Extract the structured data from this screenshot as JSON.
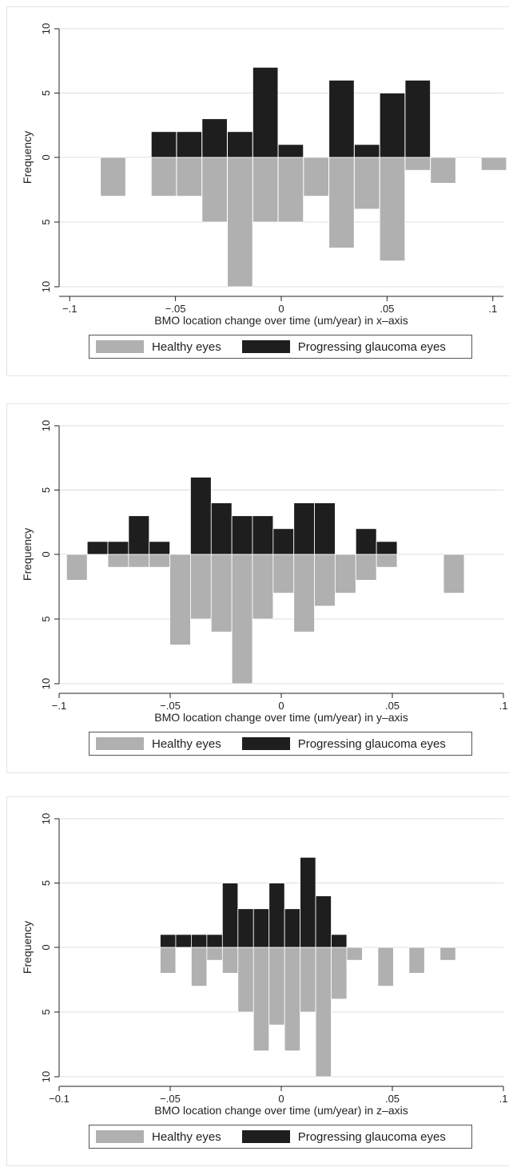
{
  "chart_data": [
    {
      "type": "bar",
      "xlabel": "BMO location change over time (um/year) in x–axis",
      "ylabel": "Frequency",
      "xlim": [
        -0.105,
        0.105
      ],
      "ylim_up": [
        0,
        10
      ],
      "ylim_down": [
        0,
        10
      ],
      "bin_width": 0.0119,
      "xticks": [
        -0.1,
        -0.05,
        0,
        0.05,
        0.1
      ],
      "xtick_labels": [
        "−.1",
        "−.05",
        "0",
        ".05",
        ".1"
      ],
      "yticks_up": [
        0,
        5,
        10
      ],
      "yticks_down": [
        5,
        10
      ],
      "ytick_labels_up": [
        "0",
        "5",
        "10"
      ],
      "ytick_labels_down": [
        "5",
        "10"
      ],
      "series": [
        {
          "name": "Healthy eyes",
          "direction": "down",
          "color": "#b0b0b0",
          "bins": [
            {
              "x": -0.0795,
              "value": 3
            },
            {
              "x": -0.0555,
              "value": 3
            },
            {
              "x": -0.0435,
              "value": 3
            },
            {
              "x": -0.0315,
              "value": 5
            },
            {
              "x": -0.0195,
              "value": 10
            },
            {
              "x": -0.0075,
              "value": 5
            },
            {
              "x": 0.0045,
              "value": 5
            },
            {
              "x": 0.0165,
              "value": 3
            },
            {
              "x": 0.0285,
              "value": 7
            },
            {
              "x": 0.0405,
              "value": 4
            },
            {
              "x": 0.0525,
              "value": 8
            },
            {
              "x": 0.0645,
              "value": 1
            },
            {
              "x": 0.0765,
              "value": 2
            },
            {
              "x": 0.1005,
              "value": 1
            }
          ]
        },
        {
          "name": "Progressing glaucoma eyes",
          "direction": "up",
          "color": "#1e1e1e",
          "bins": [
            {
              "x": -0.0555,
              "value": 2
            },
            {
              "x": -0.0435,
              "value": 2
            },
            {
              "x": -0.0315,
              "value": 3
            },
            {
              "x": -0.0195,
              "value": 2
            },
            {
              "x": -0.0075,
              "value": 7
            },
            {
              "x": 0.0045,
              "value": 1
            },
            {
              "x": 0.0285,
              "value": 6
            },
            {
              "x": 0.0405,
              "value": 1
            },
            {
              "x": 0.0525,
              "value": 5
            },
            {
              "x": 0.0645,
              "value": 6
            }
          ]
        }
      ]
    },
    {
      "type": "bar",
      "xlabel": "BMO location change over time (um/year) in y–axis",
      "ylabel": "Frequency",
      "xlim": [
        -0.1,
        0.1
      ],
      "ylim_up": [
        0,
        10
      ],
      "ylim_down": [
        0,
        10
      ],
      "bin_width": 0.0093,
      "xticks": [
        -0.1,
        -0.05,
        0,
        0.05,
        0.1
      ],
      "xtick_labels": [
        "−.1",
        "−.05",
        "0",
        ".05",
        ".1"
      ],
      "yticks_up": [
        0,
        5,
        10
      ],
      "yticks_down": [
        5,
        10
      ],
      "ytick_labels_up": [
        "0",
        "5",
        "10"
      ],
      "ytick_labels_down": [
        "5",
        "10"
      ],
      "series": [
        {
          "name": "Healthy eyes",
          "direction": "down",
          "color": "#b0b0b0",
          "bins": [
            {
              "x": -0.092,
              "value": 2
            },
            {
              "x": -0.0734,
              "value": 1
            },
            {
              "x": -0.0641,
              "value": 1
            },
            {
              "x": -0.0548,
              "value": 1
            },
            {
              "x": -0.0455,
              "value": 7
            },
            {
              "x": -0.0362,
              "value": 5
            },
            {
              "x": -0.0269,
              "value": 6
            },
            {
              "x": -0.0176,
              "value": 10
            },
            {
              "x": -0.0083,
              "value": 5
            },
            {
              "x": 0.001,
              "value": 3
            },
            {
              "x": 0.0103,
              "value": 6
            },
            {
              "x": 0.0196,
              "value": 4
            },
            {
              "x": 0.0289,
              "value": 3
            },
            {
              "x": 0.0382,
              "value": 2
            },
            {
              "x": 0.0475,
              "value": 1
            },
            {
              "x": 0.0777,
              "value": 3
            }
          ]
        },
        {
          "name": "Progressing glaucoma eyes",
          "direction": "up",
          "color": "#1e1e1e",
          "bins": [
            {
              "x": -0.0827,
              "value": 1
            },
            {
              "x": -0.0734,
              "value": 1
            },
            {
              "x": -0.0641,
              "value": 3
            },
            {
              "x": -0.0548,
              "value": 1
            },
            {
              "x": -0.0362,
              "value": 6
            },
            {
              "x": -0.0269,
              "value": 4
            },
            {
              "x": -0.0176,
              "value": 3
            },
            {
              "x": -0.0083,
              "value": 3
            },
            {
              "x": 0.001,
              "value": 2
            },
            {
              "x": 0.0103,
              "value": 4
            },
            {
              "x": 0.0196,
              "value": 4
            },
            {
              "x": 0.0382,
              "value": 2
            },
            {
              "x": 0.0475,
              "value": 1
            }
          ]
        }
      ]
    },
    {
      "type": "bar",
      "xlabel": "BMO location change over time (um/year) in z–axis",
      "ylabel": "Frequency",
      "xlim": [
        -0.1,
        0.1
      ],
      "ylim_up": [
        0,
        10
      ],
      "ylim_down": [
        0,
        10
      ],
      "bin_width": 0.007,
      "xticks": [
        -0.1,
        -0.05,
        0,
        0.05,
        0.1
      ],
      "xtick_labels": [
        "−0.1",
        "−.05",
        "0",
        ".05",
        ".1"
      ],
      "yticks_up": [
        0,
        5,
        10
      ],
      "yticks_down": [
        5,
        10
      ],
      "ytick_labels_up": [
        "0",
        "5",
        "10"
      ],
      "ytick_labels_down": [
        "5",
        "10"
      ],
      "series": [
        {
          "name": "Healthy eyes",
          "direction": "down",
          "color": "#b0b0b0",
          "bins": [
            {
              "x": -0.051,
              "value": 2
            },
            {
              "x": -0.037,
              "value": 3
            },
            {
              "x": -0.03,
              "value": 1
            },
            {
              "x": -0.023,
              "value": 2
            },
            {
              "x": -0.016,
              "value": 5
            },
            {
              "x": -0.009,
              "value": 8
            },
            {
              "x": -0.002,
              "value": 6
            },
            {
              "x": 0.005,
              "value": 8
            },
            {
              "x": 0.012,
              "value": 5
            },
            {
              "x": 0.019,
              "value": 10
            },
            {
              "x": 0.026,
              "value": 4
            },
            {
              "x": 0.033,
              "value": 1
            },
            {
              "x": 0.047,
              "value": 3
            },
            {
              "x": 0.061,
              "value": 2
            },
            {
              "x": 0.075,
              "value": 1
            }
          ]
        },
        {
          "name": "Progressing glaucoma eyes",
          "direction": "up",
          "color": "#1e1e1e",
          "bins": [
            {
              "x": -0.051,
              "value": 1
            },
            {
              "x": -0.044,
              "value": 1
            },
            {
              "x": -0.037,
              "value": 1
            },
            {
              "x": -0.03,
              "value": 1
            },
            {
              "x": -0.023,
              "value": 5
            },
            {
              "x": -0.016,
              "value": 3
            },
            {
              "x": -0.009,
              "value": 3
            },
            {
              "x": -0.002,
              "value": 5
            },
            {
              "x": 0.005,
              "value": 3
            },
            {
              "x": 0.012,
              "value": 7
            },
            {
              "x": 0.019,
              "value": 4
            },
            {
              "x": 0.026,
              "value": 1
            }
          ]
        }
      ]
    }
  ]
}
